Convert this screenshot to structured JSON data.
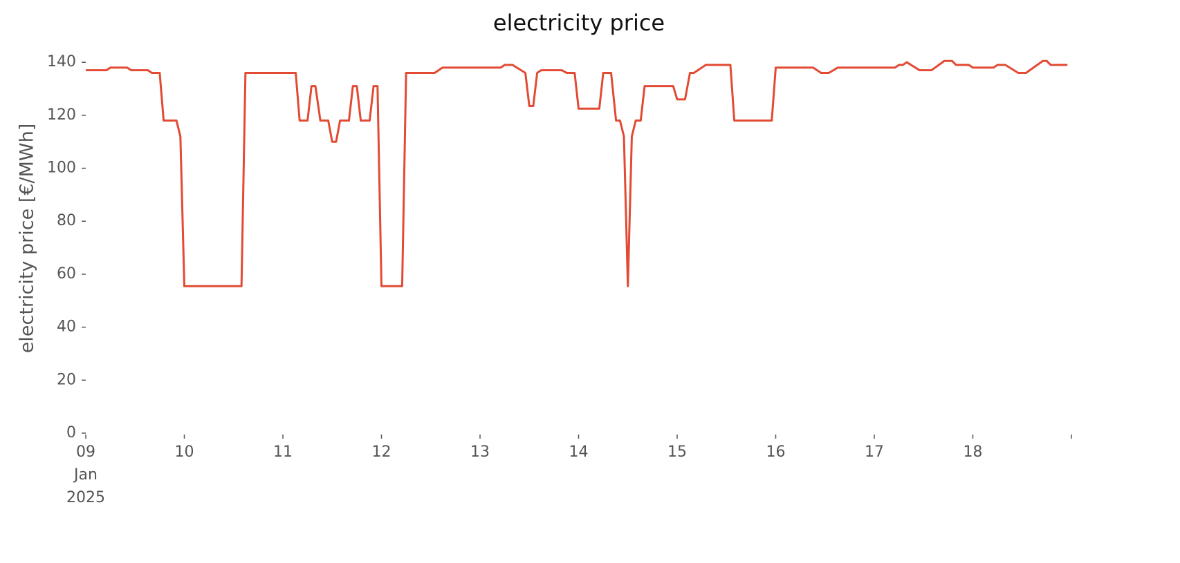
{
  "chart_data": {
    "type": "line",
    "title": "electricity price",
    "ylabel": "electricity price [€/MWh]",
    "x": [
      9.0,
      9.21,
      9.25,
      9.42,
      9.46,
      9.63,
      9.67,
      9.75,
      9.79,
      9.92,
      9.96,
      10.0,
      10.58,
      10.62,
      11.13,
      11.17,
      11.25,
      11.29,
      11.33,
      11.38,
      11.46,
      11.5,
      11.54,
      11.58,
      11.67,
      11.71,
      11.75,
      11.79,
      11.88,
      11.92,
      11.96,
      12.0,
      12.21,
      12.25,
      12.54,
      12.62,
      13.21,
      13.25,
      13.33,
      13.46,
      13.5,
      13.54,
      13.58,
      13.62,
      13.83,
      13.88,
      13.96,
      14.0,
      14.21,
      14.25,
      14.33,
      14.38,
      14.42,
      14.46,
      14.5,
      14.54,
      14.58,
      14.63,
      14.67,
      14.96,
      15.0,
      15.08,
      15.13,
      15.17,
      15.29,
      15.54,
      15.58,
      15.96,
      16.0,
      16.38,
      16.46,
      16.54,
      16.63,
      17.21,
      17.25,
      17.29,
      17.33,
      17.46,
      17.58,
      17.71,
      17.79,
      17.83,
      17.96,
      18.0,
      18.21,
      18.25,
      18.33,
      18.46,
      18.54,
      18.71,
      18.75,
      18.79,
      18.96
    ],
    "series": [
      {
        "name": "electricity price",
        "color": "#e24a33",
        "values": [
          137,
          137,
          138,
          138,
          137,
          137,
          136,
          136,
          118,
          118,
          112,
          55.5,
          55.5,
          136,
          136,
          118,
          118,
          131,
          131,
          118,
          118,
          110,
          110,
          118,
          118,
          131,
          131,
          118,
          118,
          131,
          131,
          55.5,
          55.5,
          136,
          136,
          138,
          138,
          139,
          139,
          136,
          123.5,
          123.5,
          136,
          137,
          137,
          136,
          136,
          122.5,
          122.5,
          136,
          136,
          118,
          118,
          112,
          55.5,
          112,
          118,
          118,
          131,
          131,
          126,
          126,
          136,
          136,
          139,
          139,
          118,
          118,
          138,
          138,
          136,
          136,
          138,
          138,
          139,
          139,
          140,
          137,
          137,
          140.5,
          140.5,
          139,
          139,
          138,
          138,
          139,
          139,
          136,
          136,
          140.5,
          140.5,
          139,
          139
        ]
      }
    ],
    "xlim": [
      9,
      19
    ],
    "xticks": [
      {
        "value": 9,
        "label": "09 Jan 2025"
      },
      {
        "value": 10,
        "label": "10"
      },
      {
        "value": 11,
        "label": "11"
      },
      {
        "value": 12,
        "label": "12"
      },
      {
        "value": 13,
        "label": "13"
      },
      {
        "value": 14,
        "label": "14"
      },
      {
        "value": 15,
        "label": "15"
      },
      {
        "value": 16,
        "label": "16"
      },
      {
        "value": 17,
        "label": "17"
      },
      {
        "value": 18,
        "label": "18"
      },
      {
        "value": 19,
        "label": null
      }
    ],
    "ylim": [
      0,
      145
    ],
    "yticks": [
      0,
      20,
      40,
      60,
      80,
      100,
      120,
      140
    ],
    "grid": false
  }
}
